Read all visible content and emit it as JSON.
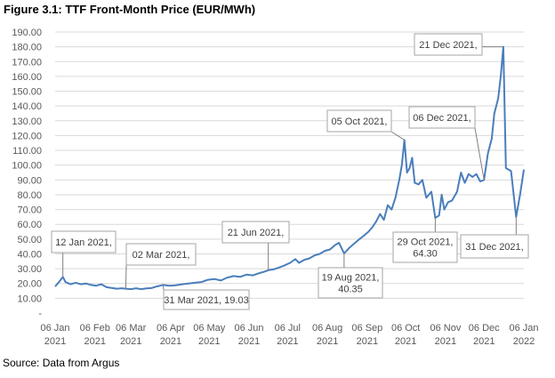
{
  "figure": {
    "title": "Figure 3.1: TTF Front-Month Price (EUR/MWh)",
    "source": "Source: Data from Argus"
  },
  "colors": {
    "line": "#4a7ebb",
    "grid": "#d9d9d9",
    "axis_text": "#595959"
  },
  "chart_data": {
    "type": "line",
    "title": "Figure 3.1: TTF Front-Month Price (EUR/MWh)",
    "xlabel": "",
    "ylabel": "",
    "ylim": [
      0,
      190
    ],
    "xlim": [
      "2021-01-06",
      "2022-01-06"
    ],
    "grid": true,
    "legend": "none",
    "y_ticks": [
      "190.00",
      "180.00",
      "170.00",
      "160.00",
      "150.00",
      "140.00",
      "130.00",
      "120.00",
      "110.00",
      "100.00",
      "90.00",
      "80.00",
      "70.00",
      "60.00",
      "50.00",
      "40.00",
      "30.00",
      "20.00",
      "10.00",
      "-"
    ],
    "x_ticks": [
      {
        "date": "2021-01-06",
        "day": "06 Jan",
        "year": "2021"
      },
      {
        "date": "2021-02-06",
        "day": "06 Feb",
        "year": "2021"
      },
      {
        "date": "2021-03-06",
        "day": "06 Mar",
        "year": "2021"
      },
      {
        "date": "2021-04-06",
        "day": "06 Apr",
        "year": "2021"
      },
      {
        "date": "2021-05-06",
        "day": "06 May",
        "year": "2021"
      },
      {
        "date": "2021-06-06",
        "day": "06 Jun",
        "year": "2021"
      },
      {
        "date": "2021-07-06",
        "day": "06 Jul",
        "year": "2021"
      },
      {
        "date": "2021-08-06",
        "day": "06 Aug",
        "year": "2021"
      },
      {
        "date": "2021-09-06",
        "day": "06 Sep",
        "year": "2021"
      },
      {
        "date": "2021-10-06",
        "day": "06 Oct",
        "year": "2021"
      },
      {
        "date": "2021-11-06",
        "day": "06 Nov",
        "year": "2021"
      },
      {
        "date": "2021-12-06",
        "day": "06 Dec",
        "year": "2021"
      },
      {
        "date": "2022-01-06",
        "day": "06 Jan",
        "year": "2022"
      }
    ],
    "series": [
      {
        "points": [
          [
            "2021-01-06",
            18
          ],
          [
            "2021-01-09",
            21
          ],
          [
            "2021-01-12",
            24.5
          ],
          [
            "2021-01-14",
            21
          ],
          [
            "2021-01-18",
            19.5
          ],
          [
            "2021-01-22",
            20.5
          ],
          [
            "2021-01-26",
            19.5
          ],
          [
            "2021-01-30",
            20
          ],
          [
            "2021-02-03",
            19
          ],
          [
            "2021-02-07",
            18.5
          ],
          [
            "2021-02-11",
            19.5
          ],
          [
            "2021-02-15",
            17.5
          ],
          [
            "2021-02-19",
            17
          ],
          [
            "2021-02-23",
            16.5
          ],
          [
            "2021-02-27",
            16.8
          ],
          [
            "2021-03-02",
            16.5
          ],
          [
            "2021-03-06",
            16.2
          ],
          [
            "2021-03-10",
            16.8
          ],
          [
            "2021-03-14",
            16.2
          ],
          [
            "2021-03-18",
            16.7
          ],
          [
            "2021-03-22",
            16.9
          ],
          [
            "2021-03-26",
            18
          ],
          [
            "2021-03-31",
            19.03
          ],
          [
            "2021-04-05",
            18.5
          ],
          [
            "2021-04-10",
            18.8
          ],
          [
            "2021-04-15",
            19.5
          ],
          [
            "2021-04-20",
            20
          ],
          [
            "2021-04-25",
            20.5
          ],
          [
            "2021-04-30",
            21
          ],
          [
            "2021-05-05",
            22.5
          ],
          [
            "2021-05-10",
            23
          ],
          [
            "2021-05-15",
            22
          ],
          [
            "2021-05-20",
            24
          ],
          [
            "2021-05-25",
            25
          ],
          [
            "2021-05-30",
            24.5
          ],
          [
            "2021-06-04",
            26
          ],
          [
            "2021-06-09",
            25.5
          ],
          [
            "2021-06-14",
            27
          ],
          [
            "2021-06-18",
            28
          ],
          [
            "2021-06-21",
            29
          ],
          [
            "2021-06-25",
            29.5
          ],
          [
            "2021-06-30",
            31
          ],
          [
            "2021-07-03",
            32
          ],
          [
            "2021-07-08",
            34
          ],
          [
            "2021-07-12",
            36.5
          ],
          [
            "2021-07-15",
            34
          ],
          [
            "2021-07-19",
            36
          ],
          [
            "2021-07-23",
            37
          ],
          [
            "2021-07-27",
            39
          ],
          [
            "2021-07-31",
            40
          ],
          [
            "2021-08-04",
            42
          ],
          [
            "2021-08-08",
            43
          ],
          [
            "2021-08-12",
            46
          ],
          [
            "2021-08-15",
            47.5
          ],
          [
            "2021-08-19",
            40.35
          ],
          [
            "2021-08-23",
            44
          ],
          [
            "2021-08-27",
            47
          ],
          [
            "2021-08-31",
            50
          ],
          [
            "2021-09-03",
            52
          ],
          [
            "2021-09-07",
            55
          ],
          [
            "2021-09-10",
            58
          ],
          [
            "2021-09-13",
            62
          ],
          [
            "2021-09-16",
            67
          ],
          [
            "2021-09-19",
            63
          ],
          [
            "2021-09-22",
            73
          ],
          [
            "2021-09-25",
            70
          ],
          [
            "2021-09-28",
            78
          ],
          [
            "2021-10-01",
            90
          ],
          [
            "2021-10-03",
            100
          ],
          [
            "2021-10-05",
            117
          ],
          [
            "2021-10-07",
            95
          ],
          [
            "2021-10-09",
            98
          ],
          [
            "2021-10-11",
            105
          ],
          [
            "2021-10-13",
            88
          ],
          [
            "2021-10-16",
            87
          ],
          [
            "2021-10-19",
            90
          ],
          [
            "2021-10-22",
            78
          ],
          [
            "2021-10-26",
            82
          ],
          [
            "2021-10-29",
            64.3
          ],
          [
            "2021-11-01",
            66
          ],
          [
            "2021-11-03",
            80
          ],
          [
            "2021-11-05",
            70
          ],
          [
            "2021-11-08",
            75
          ],
          [
            "2021-11-11",
            76
          ],
          [
            "2021-11-15",
            82
          ],
          [
            "2021-11-18",
            95
          ],
          [
            "2021-11-21",
            88
          ],
          [
            "2021-11-24",
            94
          ],
          [
            "2021-11-27",
            92
          ],
          [
            "2021-11-30",
            94
          ],
          [
            "2021-12-03",
            89
          ],
          [
            "2021-12-06",
            90
          ],
          [
            "2021-12-09",
            108
          ],
          [
            "2021-12-12",
            118
          ],
          [
            "2021-12-14",
            135
          ],
          [
            "2021-12-17",
            145
          ],
          [
            "2021-12-19",
            160
          ],
          [
            "2021-12-21",
            180
          ],
          [
            "2021-12-23",
            98
          ],
          [
            "2021-12-27",
            96
          ],
          [
            "2021-12-31",
            65
          ],
          [
            "2022-01-03",
            80
          ],
          [
            "2022-01-06",
            97
          ]
        ]
      }
    ],
    "annotations": [
      {
        "id": "jan12",
        "date": "2021-01-12",
        "value": 24.5,
        "text": "12 Jan 2021,"
      },
      {
        "id": "mar02",
        "date": "2021-03-02",
        "value": 16.5,
        "text": "02 Mar 2021,"
      },
      {
        "id": "mar31",
        "date": "2021-03-31",
        "value": 19.03,
        "text": "31 Mar 2021,  19.03"
      },
      {
        "id": "jun21",
        "date": "2021-06-21",
        "value": 29,
        "text": "21 Jun 2021,"
      },
      {
        "id": "aug19",
        "date": "2021-08-19",
        "value": 40.35,
        "lines": [
          "19 Aug 2021,",
          "40.35"
        ]
      },
      {
        "id": "oct05",
        "date": "2021-10-05",
        "value": 117,
        "text": "05 Oct 2021,"
      },
      {
        "id": "oct29",
        "date": "2021-10-29",
        "value": 64.3,
        "lines": [
          "29 Oct 2021,",
          "64.30"
        ]
      },
      {
        "id": "dec06",
        "date": "2021-12-06",
        "value": 90,
        "text": "06 Dec 2021,"
      },
      {
        "id": "dec21",
        "date": "2021-12-21",
        "value": 180,
        "text": "21 Dec 2021,"
      },
      {
        "id": "dec31",
        "date": "2021-12-31",
        "value": 65,
        "text": "31 Dec 2021,"
      }
    ]
  }
}
